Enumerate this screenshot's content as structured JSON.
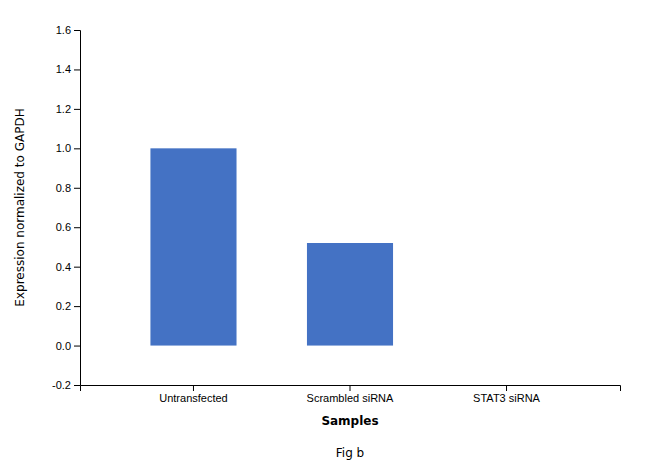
{
  "chart_data": {
    "type": "bar",
    "categories": [
      "Untransfected",
      "Scrambled siRNA",
      "STAT3 siRNA"
    ],
    "values": [
      1.0,
      0.52,
      0.0
    ],
    "color": "#4472c4",
    "xlabel": "Samples",
    "ylabel": "Expression normalized to GAPDH",
    "ylim": [
      -0.2,
      1.6
    ],
    "yticks": [
      -0.2,
      {
        "value": 0.0,
        "label": "0.0"
      },
      0.2,
      0.4,
      0.6,
      0.8,
      {
        "value": 1.0,
        "label": "1.0"
      },
      1.2,
      1.4,
      1.6
    ],
    "annotations": [
      "Fig b"
    ]
  }
}
